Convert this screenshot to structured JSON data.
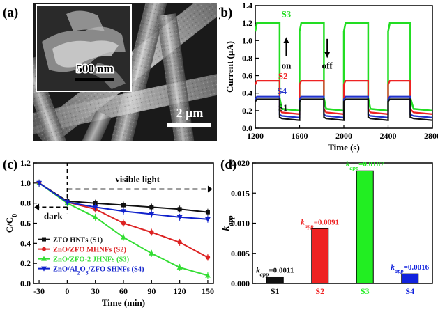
{
  "panel_a": {
    "label": "(a)",
    "inset_scale": "500 nm",
    "main_scale": "2 μm"
  },
  "chart_data": [
    {
      "panel": "(b)",
      "type": "line",
      "ylabel": "Current (μA)",
      "xlabel": "Time (s)",
      "xlim": [
        1200,
        2800
      ],
      "ylim": [
        0.0,
        1.4
      ],
      "xticks": [
        "1200",
        "1600",
        "2000",
        "2400",
        "2800"
      ],
      "yticks": [
        "0.0",
        "0.2",
        "0.4",
        "0.6",
        "0.8",
        "1.0",
        "1.2",
        "1.4"
      ],
      "annotations": {
        "on": "on",
        "off": "off"
      },
      "light_on_periods": [
        [
          1200,
          1420
        ],
        [
          1600,
          1820
        ],
        [
          2000,
          2220
        ],
        [
          2400,
          2600
        ]
      ],
      "series": [
        {
          "name": "S3",
          "color": "#22dd22",
          "on": 1.2,
          "off": 0.2
        },
        {
          "name": "S2",
          "color": "#ee2222",
          "on": 0.54,
          "off": 0.16
        },
        {
          "name": "S4",
          "color": "#2233cc",
          "on": 0.36,
          "off": 0.12
        },
        {
          "name": "S1",
          "color": "#111111",
          "on": 0.33,
          "off": 0.09
        }
      ]
    },
    {
      "panel": "(c)",
      "type": "line",
      "ylabel": "C/C0",
      "xlabel": "Time (min)",
      "x": [
        -30,
        0,
        30,
        60,
        90,
        120,
        150
      ],
      "xticks": [
        "-30",
        "0",
        "30",
        "60",
        "90",
        "120",
        "150"
      ],
      "yticks": [
        "0.0",
        "0.2",
        "0.4",
        "0.6",
        "0.8",
        "1.0",
        "1.2"
      ],
      "xlim": [
        -36,
        156
      ],
      "ylim": [
        0.0,
        1.2
      ],
      "annotations": {
        "dark": "dark",
        "visible": "visible light"
      },
      "series": [
        {
          "name": "ZFO HNFs (S1)",
          "color": "#111111",
          "marker": "square",
          "values": [
            1.0,
            0.82,
            0.8,
            0.78,
            0.76,
            0.74,
            0.71
          ]
        },
        {
          "name": "ZnO/ZFO MHNFs (S2)",
          "color": "#dd2222",
          "marker": "circle",
          "values": [
            1.0,
            0.81,
            0.74,
            0.6,
            0.51,
            0.41,
            0.26
          ]
        },
        {
          "name": "ZnO/ZFO-2 JHNFs (S3)",
          "color": "#33dd33",
          "marker": "triangle",
          "values": [
            1.0,
            0.8,
            0.66,
            0.46,
            0.3,
            0.16,
            0.08
          ]
        },
        {
          "name": "ZnO/Al2O3/ZFO SHNFs (S4)",
          "color": "#1122cc",
          "marker": "triangle-down",
          "values": [
            1.0,
            0.81,
            0.76,
            0.72,
            0.69,
            0.66,
            0.64
          ]
        }
      ]
    },
    {
      "panel": "(d)",
      "type": "bar",
      "ylabel": "kapp",
      "categories": [
        "S1",
        "S2",
        "S3",
        "S4"
      ],
      "values": [
        0.0011,
        0.0091,
        0.0187,
        0.0016
      ],
      "value_labels": [
        "=0.0011",
        "=0.0091",
        "=0.0187",
        "=0.0016"
      ],
      "colors": [
        "#111111",
        "#ee2222",
        "#22ee22",
        "#1122dd"
      ],
      "ylim": [
        0.0,
        0.02
      ],
      "yticks": [
        "0.000",
        "0.005",
        "0.010",
        "0.015",
        "0.020"
      ]
    }
  ]
}
